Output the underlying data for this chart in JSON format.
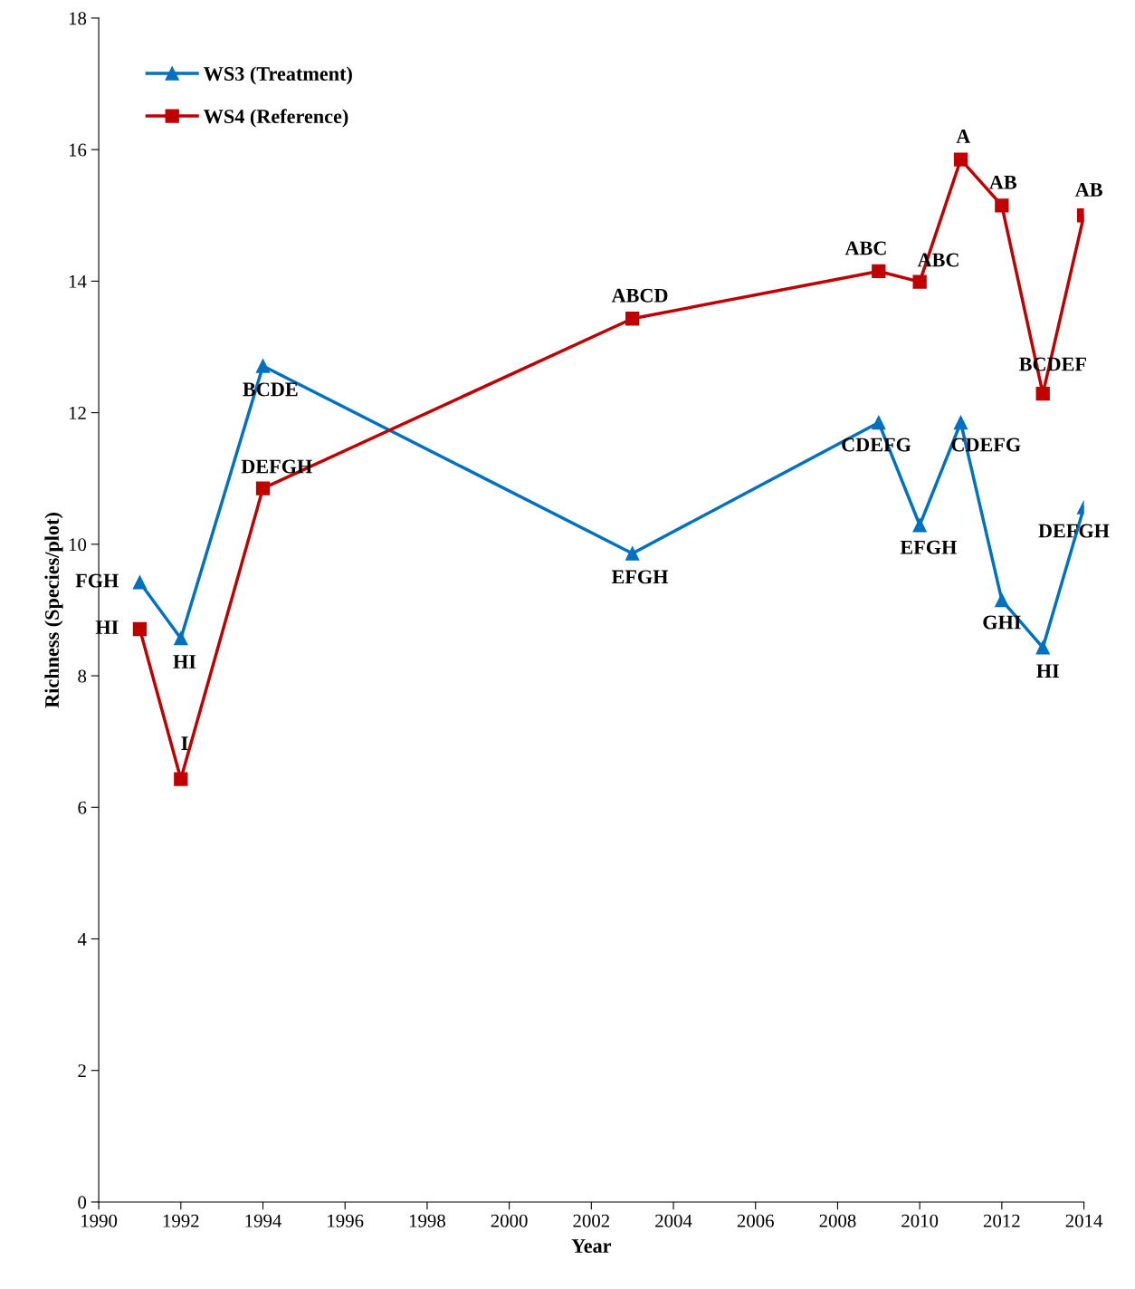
{
  "chart_data": {
    "type": "line",
    "xlabel": "Year",
    "ylabel": "Richness (Species/plot)",
    "x": [
      1991,
      1992,
      1994,
      2003,
      2009,
      2010,
      2011,
      2012,
      2013,
      2014
    ],
    "series": [
      {
        "name": "WS3 (Treatment)",
        "color": "#0070c0",
        "marker": "triangle",
        "values": [
          9.42,
          8.57,
          12.71,
          9.86,
          11.85,
          10.29,
          11.85,
          9.15,
          8.43,
          10.56
        ]
      },
      {
        "name": "WS4 (Reference)",
        "color": "#c00000",
        "marker": "square",
        "values": [
          8.71,
          6.43,
          10.85,
          13.43,
          14.15,
          13.99,
          15.85,
          15.15,
          12.29,
          15.0
        ]
      }
    ],
    "annotations": [
      {
        "text": "FGH",
        "x": 1991,
        "y": 9.42
      },
      {
        "text": "HI",
        "x": 1992,
        "y": 8.57
      },
      {
        "text": "BCDE",
        "x": 1994,
        "y": 12.71
      },
      {
        "text": "EFGH",
        "x": 2003,
        "y": 9.86
      },
      {
        "text": "CDEFG",
        "x": 2009,
        "y": 11.85
      },
      {
        "text": "EFGH",
        "x": 2010,
        "y": 10.29
      },
      {
        "text": "CDEFG",
        "x": 2011,
        "y": 11.85
      },
      {
        "text": "GHI",
        "x": 2012,
        "y": 9.15
      },
      {
        "text": "HI",
        "x": 2013,
        "y": 8.43
      },
      {
        "text": "DEFGH",
        "x": 2014,
        "y": 10.56
      },
      {
        "text": "HI",
        "x": 1991,
        "y": 8.71
      },
      {
        "text": "I",
        "x": 1992,
        "y": 6.43
      },
      {
        "text": "DEFGH",
        "x": 1994,
        "y": 10.85
      },
      {
        "text": "ABCD",
        "x": 2003,
        "y": 13.43
      },
      {
        "text": "ABC",
        "x": 2009,
        "y": 14.15
      },
      {
        "text": "ABC",
        "x": 2010,
        "y": 13.99
      },
      {
        "text": "A",
        "x": 2011,
        "y": 15.85
      },
      {
        "text": "AB",
        "x": 2012,
        "y": 15.15
      },
      {
        "text": "BCDEF",
        "x": 2013,
        "y": 12.29
      },
      {
        "text": "AB",
        "x": 2014,
        "y": 15.0
      }
    ],
    "xlim": [
      1990,
      2014
    ],
    "xticks": [
      1990,
      1992,
      1994,
      1996,
      1998,
      2000,
      2002,
      2004,
      2006,
      2008,
      2010,
      2012,
      2014
    ],
    "ylim": [
      0,
      18
    ],
    "yticks": [
      0,
      2,
      4,
      6,
      8,
      10,
      12,
      14,
      16,
      18
    ],
    "legend": "top left",
    "line_style": "solid"
  }
}
